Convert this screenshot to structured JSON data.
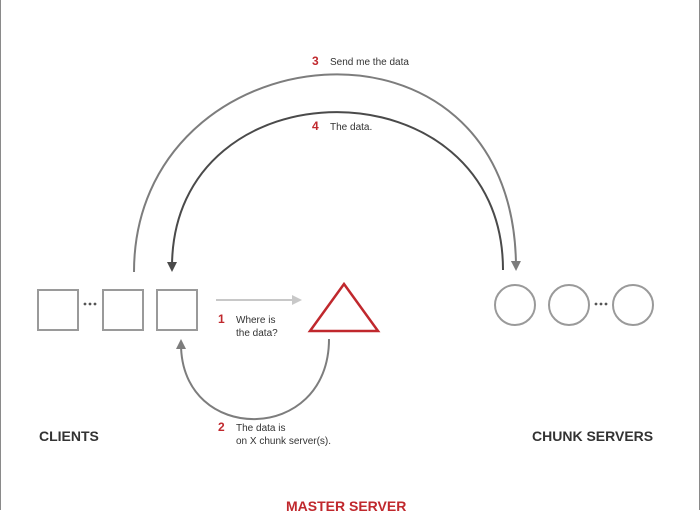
{
  "labels": {
    "clients": "CLIENTS",
    "chunk_servers": "CHUNK SERVERS",
    "master_server": "MASTER SERVER"
  },
  "steps": [
    {
      "num": "1",
      "line1": "Where  is",
      "line2": "the data?"
    },
    {
      "num": "2",
      "line1": "The data is",
      "line2": "on X chunk server(s)."
    },
    {
      "num": "3",
      "line1": "Send me the data"
    },
    {
      "num": "4",
      "line1": "The data."
    }
  ],
  "colors": {
    "accent": "#c0282d",
    "node_stroke": "#9a9a9a",
    "arrow_dark": "#4a4a4a",
    "arrow_mid": "#7d7d7d",
    "arrow_light": "#c8c8c8",
    "text": "#333333"
  },
  "icons": {
    "client_node": "square-outline",
    "chunk_server_node": "circle-outline",
    "master_server_node": "triangle-outline",
    "ellipsis": "three-dots"
  }
}
